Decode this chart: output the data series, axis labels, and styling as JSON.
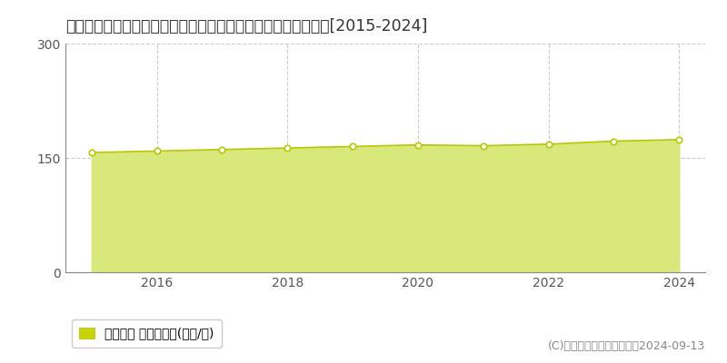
{
  "title": "東京都杉並区久我山５丁目２８３番７外　地価公示　地価推移[2015-2024]",
  "years": [
    2015,
    2016,
    2017,
    2018,
    2019,
    2020,
    2021,
    2022,
    2023,
    2024
  ],
  "values": [
    157,
    159,
    161,
    163,
    165,
    167,
    166,
    168,
    172,
    174
  ],
  "ylim": [
    0,
    300
  ],
  "yticks": [
    0,
    150,
    300
  ],
  "xticks": [
    2016,
    2018,
    2020,
    2022,
    2024
  ],
  "line_color": "#b8c800",
  "fill_color": "#d8e87a",
  "fill_alpha": 1.0,
  "marker_facecolor": "white",
  "marker_edgecolor": "#b8c800",
  "background_color": "#ffffff",
  "plot_bg_color": "#ffffff",
  "grid_color_h": "#cccccc",
  "grid_color_v": "#cccccc",
  "axis_color": "#888888",
  "tick_color": "#555555",
  "legend_label": "地価公示 平均坪単価(万円/坪)",
  "legend_marker_color": "#c8d400",
  "copyright_text": "(C)土地価格ドットコム　　2024-09-13",
  "title_fontsize": 12.5,
  "tick_fontsize": 10,
  "legend_fontsize": 10,
  "copyright_fontsize": 9
}
